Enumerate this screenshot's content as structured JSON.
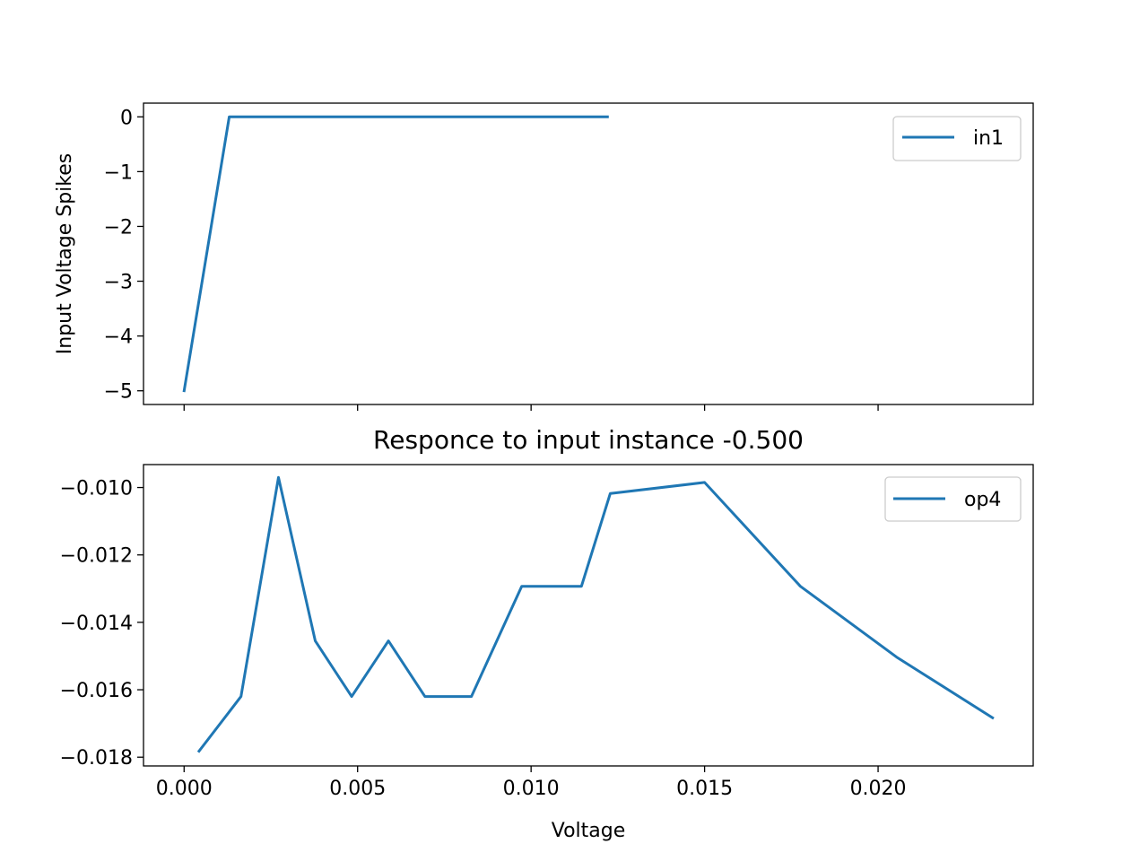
{
  "chart_data": [
    {
      "type": "line",
      "title": "",
      "xlabel": "",
      "ylabel": "Input Voltage Spikes",
      "xlim": [
        -0.00117,
        0.02447
      ],
      "ylim": [
        -5.25,
        0.25
      ],
      "xticks": [
        0.0,
        0.005,
        0.01,
        0.015,
        0.02
      ],
      "xticklabels_visible": false,
      "yticks": [
        0,
        -1,
        -2,
        -3,
        -4,
        -5
      ],
      "ytick_labels": [
        "0",
        "−1",
        "−2",
        "−3",
        "−4",
        "−5"
      ],
      "legend_position": "upper right",
      "color": "#1f77b4",
      "series": [
        {
          "name": "in1",
          "x": [
            0.0,
            0.0013,
            0.0122
          ],
          "y": [
            -5.0,
            0.0,
            0.0
          ]
        }
      ]
    },
    {
      "type": "line",
      "title": "Responce to input instance -0.500",
      "xlabel": "Voltage",
      "ylabel": "",
      "xlim": [
        -0.00117,
        0.02447
      ],
      "ylim": [
        -0.01826,
        -0.00932
      ],
      "xticks": [
        0.0,
        0.005,
        0.01,
        0.015,
        0.02
      ],
      "xtick_labels": [
        "0.000",
        "0.005",
        "0.010",
        "0.015",
        "0.020"
      ],
      "yticks": [
        -0.01,
        -0.012,
        -0.014,
        -0.016,
        -0.018
      ],
      "ytick_labels": [
        "−0.010",
        "−0.012",
        "−0.014",
        "−0.016",
        "−0.018"
      ],
      "legend_position": "upper right",
      "color": "#1f77b4",
      "series": [
        {
          "name": "op4",
          "x": [
            0.00043,
            0.00164,
            0.00272,
            0.00378,
            0.00483,
            0.00589,
            0.00694,
            0.00828,
            0.00973,
            0.01145,
            0.01228,
            0.015,
            0.01776,
            0.02053,
            0.0233
          ],
          "y": [
            -0.01782,
            -0.0162,
            -0.0097,
            -0.01455,
            -0.0162,
            -0.01455,
            -0.0162,
            -0.0162,
            -0.01293,
            -0.01293,
            -0.01018,
            -0.00985,
            -0.01293,
            -0.01503,
            -0.01683
          ]
        }
      ]
    }
  ]
}
